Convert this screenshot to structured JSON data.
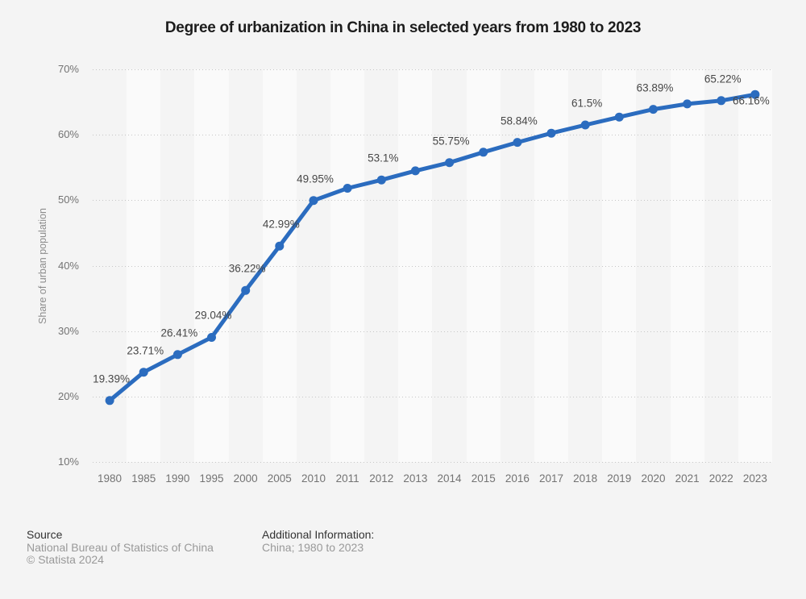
{
  "title": "Degree of urbanization in China in selected years from 1980 to 2023",
  "chart_data": {
    "type": "line",
    "title": "Degree of urbanization in China in selected years from 1980 to 2023",
    "ylabel": "Share of urban population",
    "xlabel": "",
    "x": [
      "1980",
      "1985",
      "1990",
      "1995",
      "2000",
      "2005",
      "2010",
      "2011",
      "2012",
      "2013",
      "2014",
      "2015",
      "2016",
      "2017",
      "2018",
      "2019",
      "2020",
      "2021",
      "2022",
      "2023"
    ],
    "series": [
      {
        "name": "Share of urban population",
        "values": [
          19.39,
          23.71,
          26.41,
          29.04,
          36.22,
          42.99,
          49.95,
          51.83,
          53.1,
          54.49,
          55.75,
          57.33,
          58.84,
          60.24,
          61.5,
          62.71,
          63.89,
          64.72,
          65.22,
          66.16
        ]
      }
    ],
    "point_labels": [
      "19.39%",
      "23.71%",
      "26.41%",
      "29.04%",
      "36.22%",
      "42.99%",
      "49.95%",
      null,
      "53.1%",
      null,
      "55.75%",
      null,
      "58.84%",
      null,
      "61.5%",
      null,
      "63.89%",
      null,
      "65.22%",
      "66.16%"
    ],
    "ylim": [
      10,
      70
    ],
    "ytick_values": [
      70,
      60,
      50,
      40,
      30,
      20,
      10
    ],
    "ytick_labels": [
      "70%",
      "60%",
      "50%",
      "40%",
      "30%",
      "20%",
      "10%"
    ],
    "grid": "horizontal-dotted",
    "legend_position": "none",
    "line_color": "#2b6cbf",
    "marker_color": "#2b6cbf",
    "label_color": "#474747",
    "band_color": "rgba(255,255,255,0.55)",
    "background_color": "#f4f4f4"
  },
  "footer": {
    "source_label": "Source",
    "source_name": "National Bureau of Statistics of China",
    "copyright": "© Statista 2024",
    "additional_label": "Additional Information:",
    "additional_value": "China; 1980 to 2023"
  }
}
